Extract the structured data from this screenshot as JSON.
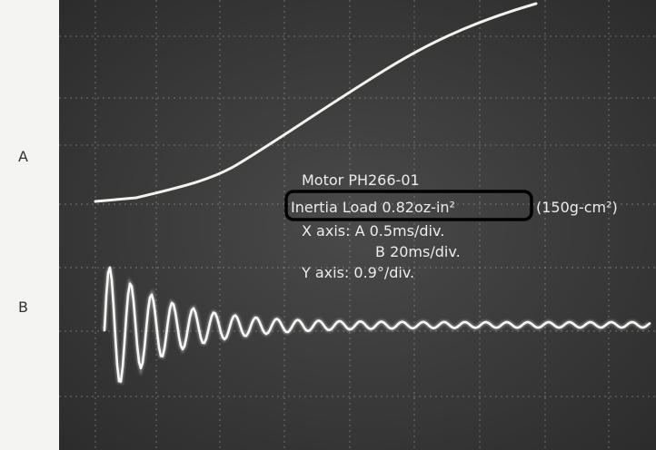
{
  "labels": {
    "a": "A",
    "b": "B"
  },
  "annotation": {
    "motor": "Motor PH266-01",
    "inertia": "Inertia Load 0.82oz-in²",
    "inertia_metric": "(150g-cm²)",
    "x_axis": "X axis: A 0.5ms/div.",
    "x_axis_b": "B 20ms/div.",
    "y_axis": "Y axis: 0.9°/div."
  }
}
